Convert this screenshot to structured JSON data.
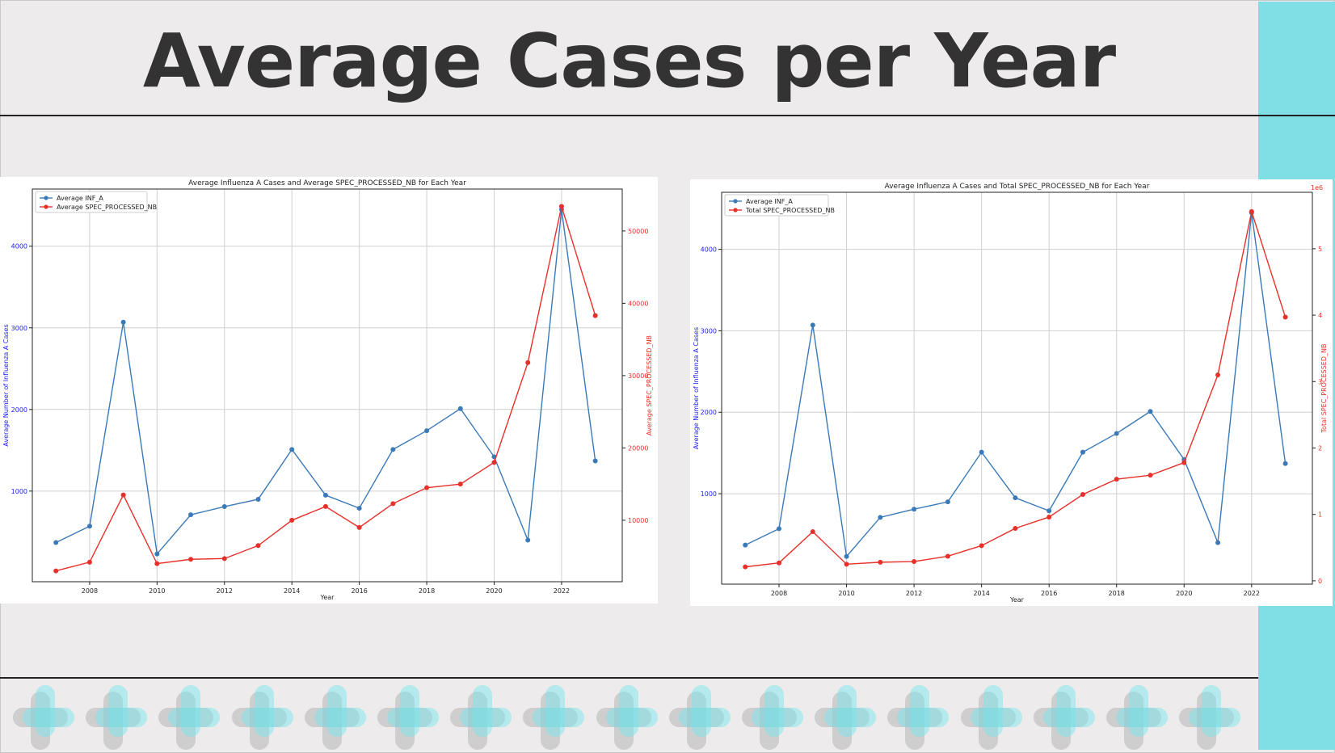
{
  "slide": {
    "title": "Average Cases per Year",
    "accent_color": "#80dfe4",
    "background_color": "#edebeb",
    "decoration_count": 17
  },
  "chart_data": [
    {
      "type": "line",
      "title": "Average Influenza A Cases and Average SPEC_PROCESSED_NB for Each Year",
      "xlabel": "Year",
      "ylabel": "Average Number of Influenza A Cases",
      "ylabel_right": "Average SPEC_PROCESSED_NB",
      "x": [
        2007,
        2008,
        2009,
        2010,
        2011,
        2012,
        2013,
        2014,
        2015,
        2016,
        2017,
        2018,
        2019,
        2020,
        2021,
        2022,
        2023
      ],
      "xlim": [
        2006.3,
        2023.8
      ],
      "ylim_left": [
        -110,
        4700
      ],
      "ylim_right": [
        1500,
        55800
      ],
      "x_ticks": [
        2008,
        2010,
        2012,
        2014,
        2016,
        2018,
        2020,
        2022
      ],
      "y_ticks_left": [
        1000,
        2000,
        3000,
        4000
      ],
      "y_ticks_right": [
        10000,
        20000,
        30000,
        40000,
        50000
      ],
      "grid": true,
      "legend_position": "top-left",
      "series": [
        {
          "name": "Average INF_A",
          "axis": "left",
          "color": "#3a7ab8",
          "values": [
            370,
            570,
            3070,
            230,
            710,
            810,
            900,
            1510,
            950,
            790,
            1510,
            1740,
            2010,
            1420,
            400,
            4450,
            1370
          ]
        },
        {
          "name": "Average SPEC_PROCESSED_NB",
          "axis": "right",
          "color": "#e8302a",
          "values": [
            3000,
            4200,
            13500,
            4000,
            4600,
            4700,
            6500,
            10000,
            11900,
            9000,
            12300,
            14500,
            15000,
            18000,
            31800,
            53400,
            38300
          ]
        }
      ]
    },
    {
      "type": "line",
      "title": "Average Influenza A Cases and Total SPEC_PROCESSED_NB for Each Year",
      "xlabel": "Year",
      "ylabel": "Average Number of Influenza A Cases",
      "ylabel_right": "Total SPEC_PROCESSED_NB",
      "right_axis_offset_label": "1e6",
      "x": [
        2007,
        2008,
        2009,
        2010,
        2011,
        2012,
        2013,
        2014,
        2015,
        2016,
        2017,
        2018,
        2019,
        2020,
        2021,
        2022,
        2023
      ],
      "xlim": [
        2006.3,
        2023.8
      ],
      "ylim_left": [
        -110,
        4700
      ],
      "ylim_right": [
        -0.05,
        5.85
      ],
      "x_ticks": [
        2008,
        2010,
        2012,
        2014,
        2016,
        2018,
        2020,
        2022
      ],
      "y_ticks_left": [
        1000,
        2000,
        3000,
        4000
      ],
      "y_ticks_right": [
        0,
        1,
        2,
        3,
        4,
        5
      ],
      "grid": true,
      "legend_position": "top-left",
      "series": [
        {
          "name": "Average INF_A",
          "axis": "left",
          "color": "#3a7ab8",
          "values": [
            370,
            570,
            3070,
            230,
            710,
            810,
            900,
            1510,
            950,
            790,
            1510,
            1740,
            2010,
            1420,
            400,
            4450,
            1370
          ]
        },
        {
          "name": "Total SPEC_PROCESSED_NB",
          "axis": "right",
          "color": "#e8302a",
          "values": [
            0.21,
            0.27,
            0.74,
            0.25,
            0.28,
            0.29,
            0.37,
            0.53,
            0.79,
            0.96,
            1.3,
            1.53,
            1.59,
            1.78,
            3.1,
            5.56,
            3.97
          ]
        }
      ]
    }
  ]
}
